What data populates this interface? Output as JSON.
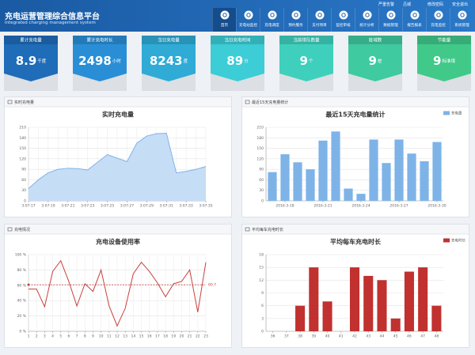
{
  "header": {
    "title": "充电运营管理综合信息平台",
    "subtitle": "Integrated charging management system",
    "links": [
      "严重告警",
      "吕城",
      "修改密码",
      "安全退出"
    ]
  },
  "nav": [
    "首页",
    "充电站监控",
    "充电调度",
    "预约服务",
    "支付项目",
    "监控审核",
    "统计分析",
    "数据管理",
    "报告报表",
    "充电监控",
    "系统管理"
  ],
  "cards": [
    {
      "label": "累计充电量",
      "value": 8.9,
      "unit": "千度",
      "color": "#1f6cb8"
    },
    {
      "label": "累计充电时长",
      "value": 2498,
      "unit": "小时",
      "color": "#2a8ed6"
    },
    {
      "label": "当日充电量",
      "value": 8243,
      "unit": "度",
      "color": "#2fabd6"
    },
    {
      "label": "当日充电时间",
      "value": 89,
      "unit": "分",
      "color": "#3ccdd6"
    },
    {
      "label": "当前排队数量",
      "value": 9,
      "unit": "个",
      "color": "#3fd0bd"
    },
    {
      "label": "桩域数",
      "value": 9,
      "unit": "桩",
      "color": "#3fca9f"
    },
    {
      "label": "节能量",
      "value": 9,
      "unit": "标准煤",
      "color": "#41c98a"
    }
  ],
  "chart_data": [
    {
      "type": "area",
      "panel_label": "实时充电量",
      "title": "实时充电量",
      "color": "#7eb3e8",
      "fill": "#c6ddf6",
      "categories": [
        "3:07:17",
        null,
        "3:07:19",
        null,
        "3:07:21",
        null,
        "3:07:23",
        null,
        "3:07:25",
        null,
        "3:07:27",
        null,
        "3:07:29",
        null,
        "3:07:31",
        null,
        "3:07:33",
        null,
        "3:07:35"
      ],
      "values": [
        35,
        60,
        80,
        90,
        93,
        92,
        88,
        110,
        132,
        122,
        112,
        165,
        185,
        192,
        193,
        80,
        84,
        90,
        98
      ],
      "ylim": [
        0,
        210
      ],
      "yticks": [
        0,
        30,
        60,
        90,
        120,
        150,
        180,
        210
      ],
      "grid": true
    },
    {
      "type": "bar",
      "panel_label": "最近15天充电量统计",
      "title": "最近15天充电量统计",
      "categories": [
        null,
        "2016-3-18",
        null,
        null,
        "2016-3-21",
        null,
        null,
        "2016-3-24",
        null,
        null,
        "2016-3-27",
        null,
        null,
        "2016-3-30"
      ],
      "series": [
        {
          "name": "充电量",
          "color": "#7eb3e8",
          "values": [
            82,
            133,
            110,
            90,
            172,
            198,
            35,
            20,
            175,
            108,
            175,
            135,
            113,
            168
          ]
        }
      ],
      "ylim": [
        0,
        210
      ],
      "yticks": [
        0,
        30,
        60,
        90,
        120,
        150,
        180,
        210
      ],
      "grid": true
    },
    {
      "type": "line",
      "panel_label": "充电情况",
      "title": "充电设备使用率",
      "color": "#c9403e",
      "categories": [
        1,
        2,
        3,
        4,
        5,
        6,
        7,
        8,
        9,
        10,
        11,
        12,
        13,
        14,
        15,
        16,
        17,
        18,
        19,
        20,
        21,
        22,
        23
      ],
      "values": [
        55,
        55,
        32,
        78,
        92,
        65,
        33,
        62,
        52,
        80,
        33,
        7,
        30,
        75,
        90,
        78,
        63,
        45,
        62,
        65,
        80,
        25,
        90
      ],
      "mark_line": 60.7,
      "ylim": [
        0,
        100
      ],
      "yticks": [
        {
          "value": 0,
          "label": "0 %"
        },
        {
          "value": 20,
          "label": "20 %"
        },
        {
          "value": 40,
          "label": "40 %"
        },
        {
          "value": 60,
          "label": "60 %"
        },
        {
          "value": 80,
          "label": "80 %"
        },
        {
          "value": 100,
          "label": "100 %"
        }
      ],
      "grid": true
    },
    {
      "type": "bar",
      "panel_label": "平均每车充电时长",
      "title": "平均每车充电时长",
      "categories": [
        36,
        37,
        38,
        39,
        40,
        41,
        42,
        43,
        44,
        45,
        46,
        47,
        48
      ],
      "series": [
        {
          "name": "充电时长",
          "color": "#c0312f",
          "values": [
            0,
            0,
            6,
            15,
            7,
            0,
            15,
            13,
            12,
            3,
            14,
            15,
            6
          ]
        }
      ],
      "ylim": [
        0,
        18
      ],
      "yticks": [
        0,
        3,
        6,
        9,
        12,
        15,
        18
      ],
      "grid": true
    }
  ]
}
